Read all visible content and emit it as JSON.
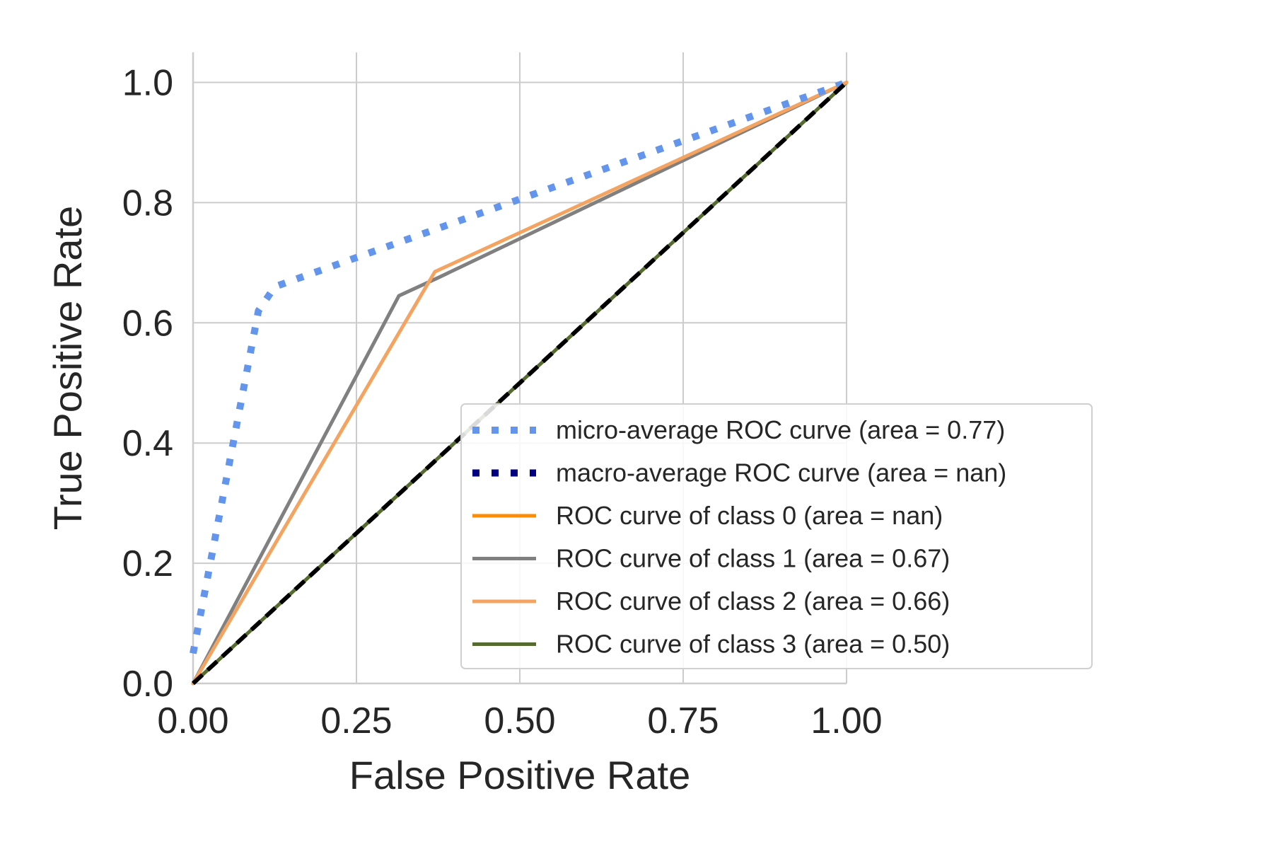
{
  "chart_data": {
    "type": "line",
    "title": "",
    "xlabel": "False Positive Rate",
    "ylabel": "True Positive Rate",
    "xlim": [
      0.0,
      1.0
    ],
    "ylim": [
      0.0,
      1.05
    ],
    "grid": true,
    "legend_position": "lower-right",
    "xticks": [
      0.0,
      0.25,
      0.5,
      0.75,
      1.0
    ],
    "xtick_labels": [
      "0.00",
      "0.25",
      "0.50",
      "0.75",
      "1.00"
    ],
    "yticks": [
      0.0,
      0.2,
      0.4,
      0.6,
      0.8,
      1.0
    ],
    "ytick_labels": [
      "0.0",
      "0.2",
      "0.4",
      "0.6",
      "0.8",
      "1.0"
    ],
    "series": [
      {
        "name": "micro-average ROC curve (area = 0.77)",
        "color": "#6495ed",
        "style": "dotted",
        "x": [
          0.0,
          0.1,
          0.125,
          1.0
        ],
        "y": [
          0.05,
          0.62,
          0.66,
          1.0
        ]
      },
      {
        "name": "macro-average ROC curve (area = nan)",
        "color": "#000080",
        "style": "dotted",
        "x": [],
        "y": []
      },
      {
        "name": "ROC curve of class 0 (area = nan)",
        "color": "#ff8c00",
        "style": "solid",
        "x": [],
        "y": []
      },
      {
        "name": "ROC curve of class 1 (area = 0.67)",
        "color": "#808080",
        "style": "solid",
        "x": [
          0.0,
          0.315,
          0.375,
          1.0
        ],
        "y": [
          0.0,
          0.645,
          0.675,
          1.0
        ]
      },
      {
        "name": "ROC curve of class 2 (area = 0.66)",
        "color": "#f4a460",
        "style": "solid",
        "x": [
          0.0,
          0.37,
          1.0
        ],
        "y": [
          0.0,
          0.685,
          1.0
        ]
      },
      {
        "name": "ROC curve of class 3 (area = 0.50)",
        "color": "#556b2f",
        "style": "solid",
        "x": [
          0.0,
          1.0
        ],
        "y": [
          0.0,
          1.0
        ]
      }
    ],
    "reference_line": {
      "color": "#000000",
      "style": "dashed",
      "x": [
        0.0,
        1.0
      ],
      "y": [
        0.0,
        1.0
      ]
    }
  }
}
